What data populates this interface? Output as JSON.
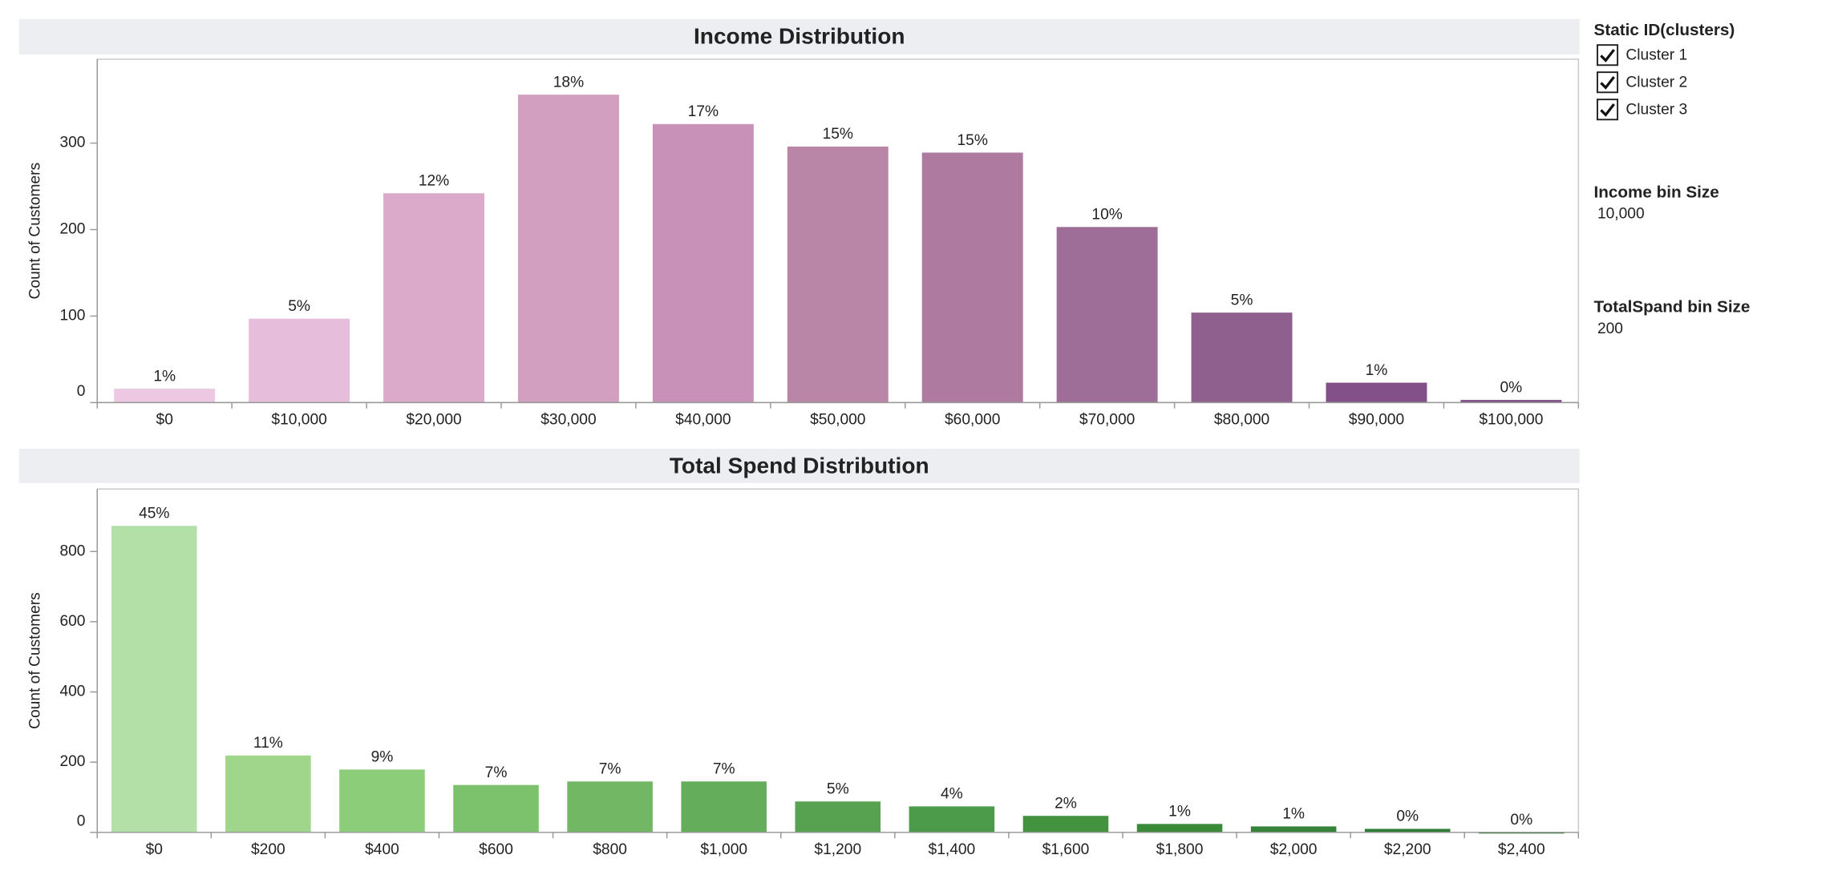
{
  "chart_data": [
    {
      "type": "bar",
      "title": "Income Distribution",
      "y_label": "Count of Customers",
      "categories": [
        "$0",
        "$10,000",
        "$20,000",
        "$30,000",
        "$40,000",
        "$50,000",
        "$60,000",
        "$70,000",
        "$80,000",
        "$90,000",
        "$100,000"
      ],
      "values": [
        16,
        97,
        242,
        356,
        322,
        296,
        289,
        203,
        104,
        23,
        3
      ],
      "percent_labels": [
        "1%",
        "5%",
        "12%",
        "18%",
        "17%",
        "15%",
        "15%",
        "10%",
        "5%",
        "1%",
        "0%"
      ],
      "colors": [
        "#ecc8e2",
        "#e6bddb",
        "#dbaacb",
        "#d29fc0",
        "#c791b8",
        "#ba86a8",
        "#ae7aa0",
        "#9e6e99",
        "#8f5f8d",
        "#84508a",
        "#7d4a83"
      ],
      "ylim": [
        0,
        397
      ],
      "yticks": [
        0,
        100,
        200,
        300
      ]
    },
    {
      "type": "bar",
      "title": "Total Spend Distribution",
      "y_label": "Count of Customers",
      "categories": [
        "$0",
        "$200",
        "$400",
        "$600",
        "$800",
        "$1,000",
        "$1,200",
        "$1,400",
        "$1,600",
        "$1,800",
        "$2,000",
        "$2,200",
        "$2,400"
      ],
      "values": [
        873,
        219,
        179,
        135,
        145,
        145,
        88,
        74,
        47,
        24,
        17,
        10,
        0
      ],
      "percent_labels": [
        "45%",
        "11%",
        "9%",
        "7%",
        "7%",
        "7%",
        "5%",
        "4%",
        "2%",
        "1%",
        "1%",
        "0%",
        "0%"
      ],
      "colors": [
        "#b3e0a6",
        "#a0d68c",
        "#8ccd7a",
        "#7cc26d",
        "#72b864",
        "#64ad5a",
        "#57a250",
        "#4c9b4a",
        "#43923f",
        "#3a8a3a",
        "#358338",
        "#2f7d34",
        "#2a7530"
      ],
      "ylim": [
        0,
        978
      ],
      "yticks": [
        0,
        200,
        400,
        600,
        800
      ]
    }
  ],
  "side_panel": {
    "filter_title": "Static ID(clusters)",
    "filter_items": [
      "Cluster 1",
      "Cluster 2",
      "Cluster 3"
    ],
    "income_bin_title": "Income bin Size",
    "income_bin_value": "10,000",
    "spend_bin_title": "TotalSpand bin Size",
    "spend_bin_value": "200"
  }
}
